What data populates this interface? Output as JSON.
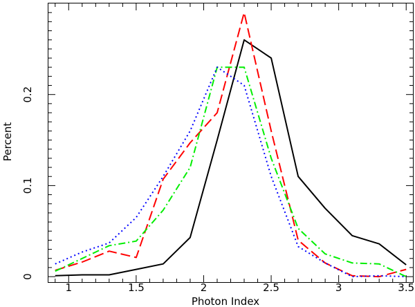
{
  "chart_data": {
    "type": "line",
    "title": "",
    "xlabel": "Photon Index",
    "ylabel": "Percent",
    "xlim": [
      0.85,
      3.55
    ],
    "ylim": [
      -0.006,
      0.3
    ],
    "x_ticks": [
      1,
      1.5,
      2,
      2.5,
      3,
      3.5
    ],
    "x_tick_labels": [
      "1",
      "1.5",
      "2",
      "2.5",
      "3",
      "3.5"
    ],
    "y_ticks": [
      0,
      0.1,
      0.2
    ],
    "y_tick_labels": [
      "0",
      "0.1",
      "0.2"
    ],
    "grid": false,
    "legend": "none",
    "series": [
      {
        "name": "solid-black",
        "color": "#000000",
        "dash": "solid",
        "x": [
          0.9,
          1.1,
          1.3,
          1.5,
          1.7,
          1.9,
          2.1,
          2.3,
          2.5,
          2.7,
          2.9,
          3.1,
          3.3,
          3.5
        ],
        "y": [
          0.001,
          0.002,
          0.002,
          0.008,
          0.014,
          0.043,
          0.15,
          0.26,
          0.24,
          0.11,
          0.075,
          0.045,
          0.036,
          0.013
        ]
      },
      {
        "name": "dashed-red",
        "color": "#ff0000",
        "dash": "dashed",
        "x": [
          0.9,
          1.1,
          1.3,
          1.5,
          1.7,
          1.9,
          2.1,
          2.3,
          2.5,
          2.7,
          2.9,
          3.1,
          3.3,
          3.5
        ],
        "y": [
          0.007,
          0.016,
          0.028,
          0.021,
          0.107,
          0.147,
          0.18,
          0.29,
          0.16,
          0.04,
          0.015,
          0.001,
          0.0,
          0.008
        ]
      },
      {
        "name": "dashdot-green",
        "color": "#00ee00",
        "dash": "dashdot",
        "x": [
          0.9,
          1.1,
          1.3,
          1.5,
          1.7,
          1.9,
          2.1,
          2.3,
          2.5,
          2.7,
          2.9,
          3.1,
          3.3,
          3.5
        ],
        "y": [
          0.006,
          0.02,
          0.034,
          0.039,
          0.073,
          0.12,
          0.23,
          0.23,
          0.13,
          0.053,
          0.025,
          0.015,
          0.014,
          0.0
        ]
      },
      {
        "name": "dotted-blue",
        "color": "#0000ff",
        "dash": "dotted",
        "x": [
          0.9,
          1.1,
          1.3,
          1.5,
          1.7,
          1.9,
          2.1,
          2.3,
          2.5,
          2.7,
          2.9,
          3.1,
          3.3,
          3.5
        ],
        "y": [
          0.014,
          0.027,
          0.037,
          0.065,
          0.11,
          0.16,
          0.23,
          0.21,
          0.11,
          0.033,
          0.015,
          0.0,
          0.001,
          0.0
        ]
      }
    ]
  }
}
